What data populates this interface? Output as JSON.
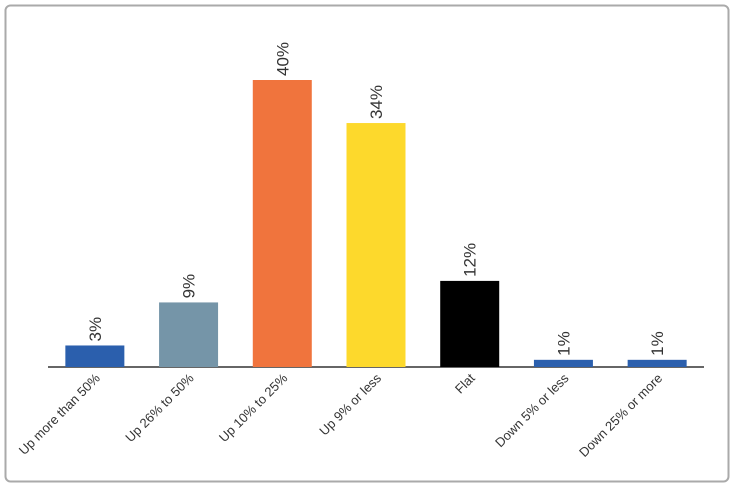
{
  "chart_data": {
    "type": "bar",
    "categories": [
      "Up more than 50%",
      "Up 26% to 50%",
      "Up 10% to 25%",
      "Up 9% or less",
      "Flat",
      "Down 5% or less",
      "Down 25% or more"
    ],
    "values": [
      3,
      9,
      40,
      34,
      12,
      1,
      1
    ],
    "value_labels": [
      "3%",
      "9%",
      "40%",
      "34%",
      "12%",
      "1%",
      "1%"
    ],
    "colors": [
      "#2b5fad",
      "#7595a8",
      "#f0743d",
      "#fdd92c",
      "#000000",
      "#2b5fad",
      "#2b5fad"
    ]
  }
}
